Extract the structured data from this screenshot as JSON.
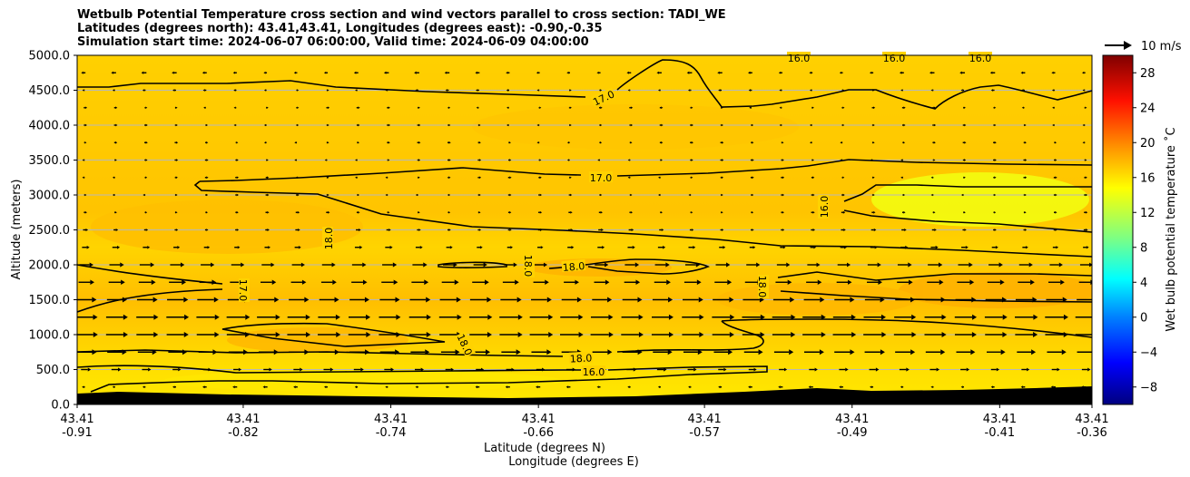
{
  "chart_data": {
    "type": "heatmap",
    "title_lines": [
      "Wetbulb Potential Temperature cross section and wind vectors parallel to cross section: TADI_WE",
      "Latitudes (degrees north): 43.41,43.41, Longitudes (degrees east): -0.90,-0.35",
      "Simulation start time: 2024-06-07 06:00:00, Valid time: 2024-06-09 04:00:00"
    ],
    "ylabel": "Altitude (meters)",
    "xlabel_lines": [
      "Latitude (degrees N)",
      "Longitude (degrees E)"
    ],
    "ylim": [
      0,
      5000
    ],
    "y_ticks": [
      "0.0",
      "500.0",
      "1000.0",
      "1500.0",
      "2000.0",
      "2500.0",
      "3000.0",
      "3500.0",
      "4000.0",
      "4500.0",
      "5000.0"
    ],
    "x_ticks": [
      {
        "lat": "43.41",
        "lon": "-0.91"
      },
      {
        "lat": "43.41",
        "lon": "-0.82"
      },
      {
        "lat": "43.41",
        "lon": "-0.74"
      },
      {
        "lat": "43.41",
        "lon": "-0.66"
      },
      {
        "lat": "43.41",
        "lon": "-0.57"
      },
      {
        "lat": "43.41",
        "lon": "-0.49"
      },
      {
        "lat": "43.41",
        "lon": "-0.41"
      },
      {
        "lat": "43.41",
        "lon": "-0.36"
      }
    ],
    "xlim_lon": [
      -0.91,
      -0.36
    ],
    "grid": "horizontal",
    "colorbar": {
      "label": "Wet bulb potential temperature ˚C",
      "range": [
        -10,
        30
      ],
      "ticks": [
        "−8",
        "−4",
        "0",
        "4",
        "8",
        "12",
        "16",
        "20",
        "24",
        "28"
      ]
    },
    "quiver_key": {
      "label": "10 m/s"
    },
    "contour_labels": [
      "17.0",
      "17.0",
      "18.0",
      "18.0",
      "18.0",
      "16.0",
      "18.0",
      "18.0",
      "18.0",
      "16.0",
      "16.0",
      "16.0",
      "17.0",
      "16.0"
    ],
    "wind_rows": [
      {
        "altitude": 250,
        "u": -0.8
      },
      {
        "altitude": 500,
        "u": 3.0
      },
      {
        "altitude": 750,
        "u": 7.5
      },
      {
        "altitude": 1000,
        "u": 9.0
      },
      {
        "altitude": 1250,
        "u": 9.0
      },
      {
        "altitude": 1500,
        "u": 8.0
      },
      {
        "altitude": 1750,
        "u": 6.0
      },
      {
        "altitude": 2000,
        "u": 5.0
      },
      {
        "altitude": 2250,
        "u": 2.0
      },
      {
        "altitude": 2500,
        "u": 1.0
      },
      {
        "altitude": 2750,
        "u": 0.5
      },
      {
        "altitude": 3000,
        "u": 0.3
      },
      {
        "altitude": 3250,
        "u": 0.3
      },
      {
        "altitude": 3500,
        "u": 0.3
      },
      {
        "altitude": 3750,
        "u": 0.3
      },
      {
        "altitude": 4000,
        "u": 0.3
      },
      {
        "altitude": 4250,
        "u": 0.3
      },
      {
        "altitude": 4500,
        "u": -0.3
      },
      {
        "altitude": 4750,
        "u": -1.0
      }
    ]
  }
}
